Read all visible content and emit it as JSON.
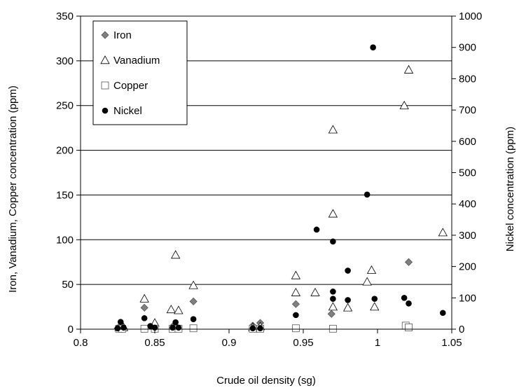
{
  "chart_data": {
    "type": "scatter",
    "xlabel": "Crude oil density (sg)",
    "ylabel_left": "Iron, Vanadium, Copper concentration (ppm)",
    "ylabel_right": "Nickel concentration (ppm)",
    "xlim": [
      0.8,
      1.05
    ],
    "ylim_left": [
      0,
      350
    ],
    "ylim_right": [
      0,
      1000
    ],
    "x_ticks": [
      "0.8",
      "0.85",
      "0.9",
      "0.95",
      "1",
      "1.05"
    ],
    "y_ticks_left": [
      "0",
      "50",
      "100",
      "150",
      "200",
      "250",
      "300",
      "350"
    ],
    "y_ticks_right": [
      "0",
      "100",
      "200",
      "300",
      "400",
      "500",
      "600",
      "700",
      "800",
      "900",
      "1000"
    ],
    "grid": "horizontal",
    "legend_position": "top-left",
    "series": [
      {
        "name": "Iron",
        "axis": "left",
        "marker": "diamond",
        "color": "#808080",
        "points": [
          [
            0.825,
            1
          ],
          [
            0.827,
            1
          ],
          [
            0.829,
            1
          ],
          [
            0.843,
            24
          ],
          [
            0.849,
            1
          ],
          [
            0.862,
            3
          ],
          [
            0.865,
            2
          ],
          [
            0.876,
            31
          ],
          [
            0.916,
            4
          ],
          [
            0.921,
            7
          ],
          [
            0.945,
            28
          ],
          [
            0.969,
            17
          ],
          [
            1.021,
            75
          ]
        ]
      },
      {
        "name": "Vanadium",
        "axis": "left",
        "marker": "triangle",
        "color": "#ffffff",
        "points": [
          [
            0.826,
            2
          ],
          [
            0.829,
            2
          ],
          [
            0.843,
            34
          ],
          [
            0.85,
            7
          ],
          [
            0.861,
            22
          ],
          [
            0.864,
            83
          ],
          [
            0.866,
            21
          ],
          [
            0.876,
            49
          ],
          [
            0.916,
            2
          ],
          [
            0.921,
            3
          ],
          [
            0.945,
            60
          ],
          [
            0.945,
            41
          ],
          [
            0.958,
            41
          ],
          [
            0.97,
            223
          ],
          [
            0.97,
            129
          ],
          [
            0.97,
            25
          ],
          [
            0.98,
            24
          ],
          [
            0.993,
            53
          ],
          [
            0.996,
            66
          ],
          [
            0.998,
            25
          ],
          [
            1.018,
            250
          ],
          [
            1.021,
            290
          ],
          [
            1.044,
            108
          ]
        ]
      },
      {
        "name": "Copper",
        "axis": "left",
        "marker": "square",
        "color": "#ffffff",
        "points": [
          [
            0.826,
            0.5
          ],
          [
            0.828,
            0.5
          ],
          [
            0.843,
            0.5
          ],
          [
            0.85,
            0.5
          ],
          [
            0.862,
            0.5
          ],
          [
            0.866,
            0.5
          ],
          [
            0.876,
            1
          ],
          [
            0.916,
            0.5
          ],
          [
            0.921,
            0.5
          ],
          [
            0.945,
            1
          ],
          [
            0.97,
            0.5
          ],
          [
            1.019,
            4
          ],
          [
            1.021,
            2
          ]
        ]
      },
      {
        "name": "Nickel",
        "axis": "right",
        "marker": "circle",
        "color": "#000000",
        "points": [
          [
            0.825,
            3
          ],
          [
            0.827,
            23
          ],
          [
            0.829,
            5
          ],
          [
            0.843,
            35
          ],
          [
            0.847,
            10
          ],
          [
            0.85,
            5
          ],
          [
            0.862,
            5
          ],
          [
            0.864,
            22
          ],
          [
            0.866,
            5
          ],
          [
            0.876,
            32
          ],
          [
            0.916,
            3
          ],
          [
            0.921,
            3
          ],
          [
            0.945,
            45
          ],
          [
            0.959,
            318
          ],
          [
            0.97,
            280
          ],
          [
            0.97,
            120
          ],
          [
            0.97,
            97
          ],
          [
            0.98,
            187
          ],
          [
            0.98,
            93
          ],
          [
            0.993,
            430
          ],
          [
            0.997,
            900
          ],
          [
            0.998,
            97
          ],
          [
            1.018,
            100
          ],
          [
            1.021,
            82
          ],
          [
            1.044,
            52
          ]
        ]
      }
    ]
  }
}
